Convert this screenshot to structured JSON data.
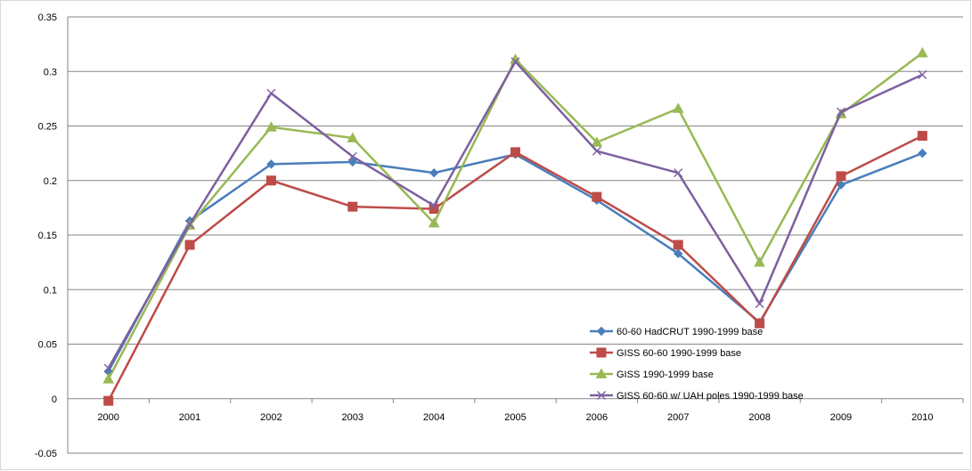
{
  "chart_data": {
    "type": "line",
    "title": "",
    "xlabel": "",
    "ylabel": "",
    "categories": [
      "2000",
      "2001",
      "2002",
      "2003",
      "2004",
      "2005",
      "2006",
      "2007",
      "2008",
      "2009",
      "2010"
    ],
    "ylim": [
      -0.05,
      0.35
    ],
    "yticks": [
      -0.05,
      0,
      0.05,
      0.1,
      0.15,
      0.2,
      0.25,
      0.3,
      0.35
    ],
    "ytick_labels": [
      "-0.05",
      "0",
      "0.05",
      "0.1",
      "0.15",
      "0.2",
      "0.25",
      "0.3",
      "0.35"
    ],
    "grid": "horizontal",
    "legend_position": "lower-right-inside",
    "series": [
      {
        "name": "60-60 HadCRUT 1990-1999 base",
        "color": "#4a7ebb",
        "marker": "diamond",
        "values": [
          0.025,
          0.163,
          0.215,
          0.217,
          0.207,
          0.224,
          0.182,
          0.133,
          0.07,
          0.196,
          0.225
        ]
      },
      {
        "name": "GISS 60-60 1990-1999 base",
        "color": "#be4b48",
        "marker": "square",
        "values": [
          -0.002,
          0.141,
          0.2,
          0.176,
          0.174,
          0.226,
          0.185,
          0.141,
          0.069,
          0.204,
          0.241
        ]
      },
      {
        "name": "GISS 1990-1999 base",
        "color": "#98b954",
        "marker": "triangle",
        "values": [
          0.018,
          0.159,
          0.249,
          0.239,
          0.161,
          0.311,
          0.235,
          0.266,
          0.125,
          0.261,
          0.317
        ]
      },
      {
        "name": "GISS 60-60 w/ UAH poles 1990-1999 base",
        "color": "#7d60a0",
        "marker": "x",
        "values": [
          0.028,
          0.16,
          0.28,
          0.222,
          0.177,
          0.309,
          0.227,
          0.207,
          0.087,
          0.263,
          0.297
        ]
      }
    ]
  }
}
